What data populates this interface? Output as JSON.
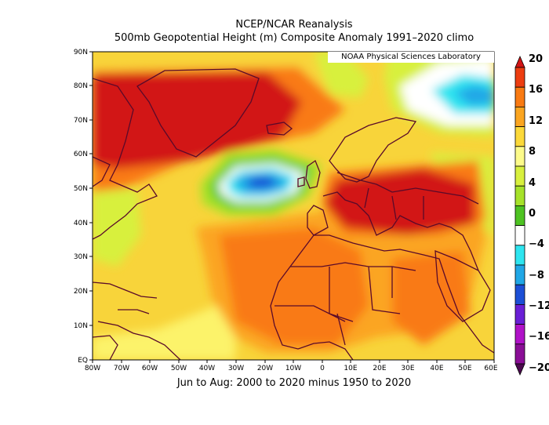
{
  "header": {
    "title": "NCEP/NCAR Reanalysis",
    "subtitle": "500mb Geopotential Height (m) Composite Anomaly 1991–2020 climo"
  },
  "credit": "NOAA Physical Sciences Laboratory",
  "caption": "Jun to Aug: 2000 to 2020 minus 1950 to 2020",
  "map": {
    "lat_labels": [
      "90N",
      "80N",
      "70N",
      "60N",
      "50N",
      "40N",
      "30N",
      "20N",
      "10N",
      "EQ"
    ],
    "lon_labels": [
      "80W",
      "70W",
      "60W",
      "50W",
      "40W",
      "30W",
      "20W",
      "10W",
      "0",
      "10E",
      "20E",
      "30E",
      "40E",
      "50E",
      "60E"
    ]
  },
  "colorbar": {
    "ticks": [
      "20",
      "16",
      "12",
      "8",
      "4",
      "0",
      "−4",
      "−8",
      "−12",
      "−16",
      "−20"
    ],
    "colors": [
      "#d21414",
      "#ed3d10",
      "#f97a12",
      "#fba520",
      "#fcd93a",
      "#fdfb8a",
      "#d8f03e",
      "#a6e22a",
      "#4ec322",
      "#ffffff",
      "#2ee5f0",
      "#20a7e6",
      "#1c4fd6",
      "#6a1fd6",
      "#b012c8",
      "#8a0e96",
      "#4b0a4e"
    ]
  }
}
